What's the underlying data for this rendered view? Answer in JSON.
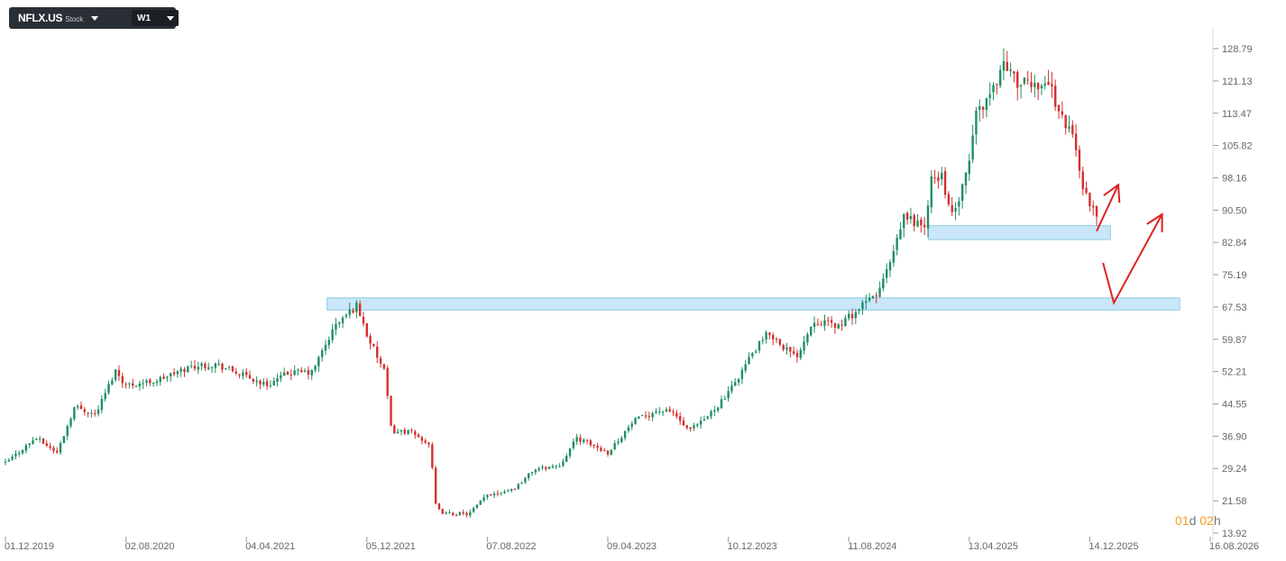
{
  "toolbar": {
    "symbol": "NFLX.US",
    "instrument_type": "Stock",
    "timeframe": "W1"
  },
  "countdown": {
    "days": "01",
    "days_unit": "d",
    "hours": "02",
    "hours_unit": "h"
  },
  "colors": {
    "up": "#1f8f63",
    "down": "#d33030",
    "zone": "#bfe3f7",
    "zone_border": "#8fcbe9",
    "arrow": "#e02020"
  },
  "chart_data": {
    "type": "candlestick",
    "y_ticks": [
      "128.79",
      "121.13",
      "113.47",
      "105.82",
      "98.16",
      "90.50",
      "82.84",
      "75.19",
      "67.53",
      "59.87",
      "52.21",
      "44.55",
      "36.90",
      "29.24",
      "21.58",
      "13.92"
    ],
    "x_ticks": [
      "01.12.2019",
      "02.08.2020",
      "04.04.2021",
      "05.12.2021",
      "07.08.2022",
      "09.04.2023",
      "10.12.2023",
      "11.08.2024",
      "13.04.2025",
      "14.12.2025",
      "16.08.2026"
    ],
    "ylim": [
      13.92,
      128.79
    ],
    "close_path": [
      [
        "2019-12-01",
        30.5
      ],
      [
        "2020-02-01",
        36.5
      ],
      [
        "2020-03-15",
        33.0
      ],
      [
        "2020-04-20",
        44.0
      ],
      [
        "2020-06-01",
        42.0
      ],
      [
        "2020-07-12",
        52.5
      ],
      [
        "2020-08-02",
        49.0
      ],
      [
        "2020-10-01",
        50.0
      ],
      [
        "2020-12-15",
        53.5
      ],
      [
        "2021-02-01",
        54.0
      ],
      [
        "2021-04-04",
        51.0
      ],
      [
        "2021-05-15",
        49.0
      ],
      [
        "2021-07-01",
        52.0
      ],
      [
        "2021-08-15",
        52.0
      ],
      [
        "2021-10-01",
        63.0
      ],
      [
        "2021-11-15",
        68.0
      ],
      [
        "2021-12-05",
        61.0
      ],
      [
        "2022-01-10",
        52.0
      ],
      [
        "2022-01-24",
        38.0
      ],
      [
        "2022-03-01",
        38.0
      ],
      [
        "2022-04-12",
        35.0
      ],
      [
        "2022-04-25",
        19.5
      ],
      [
        "2022-05-15",
        18.5
      ],
      [
        "2022-07-01",
        18.5
      ],
      [
        "2022-08-07",
        23.0
      ],
      [
        "2022-10-01",
        24.5
      ],
      [
        "2022-11-10",
        29.0
      ],
      [
        "2023-01-01",
        30.0
      ],
      [
        "2023-02-05",
        36.5
      ],
      [
        "2023-04-09",
        33.0
      ],
      [
        "2023-06-01",
        40.5
      ],
      [
        "2023-07-20",
        43.0
      ],
      [
        "2023-08-20",
        42.5
      ],
      [
        "2023-09-20",
        38.0
      ],
      [
        "2023-10-20",
        40.5
      ],
      [
        "2023-12-10",
        47.0
      ],
      [
        "2024-01-25",
        56.0
      ],
      [
        "2024-03-01",
        61.5
      ],
      [
        "2024-04-25",
        55.5
      ],
      [
        "2024-06-01",
        64.5
      ],
      [
        "2024-07-20",
        63.0
      ],
      [
        "2024-08-11",
        65.0
      ],
      [
        "2024-10-10",
        71.0
      ],
      [
        "2024-11-10",
        80.0
      ],
      [
        "2024-12-01",
        89.0
      ],
      [
        "2025-01-15",
        86.5
      ],
      [
        "2025-01-25",
        97.5
      ],
      [
        "2025-02-15",
        99.0
      ],
      [
        "2025-03-10",
        88.5
      ],
      [
        "2025-04-10",
        99.5
      ],
      [
        "2025-04-25",
        113.0
      ],
      [
        "2025-05-25",
        118.0
      ],
      [
        "2025-06-25",
        126.0
      ],
      [
        "2025-07-15",
        121.0
      ],
      [
        "2025-08-10",
        120.0
      ],
      [
        "2025-09-20",
        121.0
      ],
      [
        "2025-10-20",
        112.0
      ],
      [
        "2025-11-10",
        108.0
      ],
      [
        "2025-12-01",
        96.0
      ],
      [
        "2025-12-14",
        91.5
      ],
      [
        "2025-12-28",
        89.0
      ]
    ],
    "zones": [
      {
        "from": "2021-09-15",
        "to": "2026-06-15",
        "low": 66.8,
        "high": 69.7
      },
      {
        "from": "2025-01-20",
        "to": "2026-01-25",
        "low": 83.5,
        "high": 86.8
      }
    ],
    "arrows": [
      {
        "points": [
          [
            "2025-12-28",
            85.5
          ],
          [
            "2026-02-10",
            96.5
          ]
        ],
        "head": "end"
      },
      {
        "points": [
          [
            "2026-01-10",
            78.0
          ],
          [
            "2026-02-01",
            68.5
          ],
          [
            "2026-05-10",
            89.5
          ]
        ],
        "head": "end"
      }
    ]
  }
}
